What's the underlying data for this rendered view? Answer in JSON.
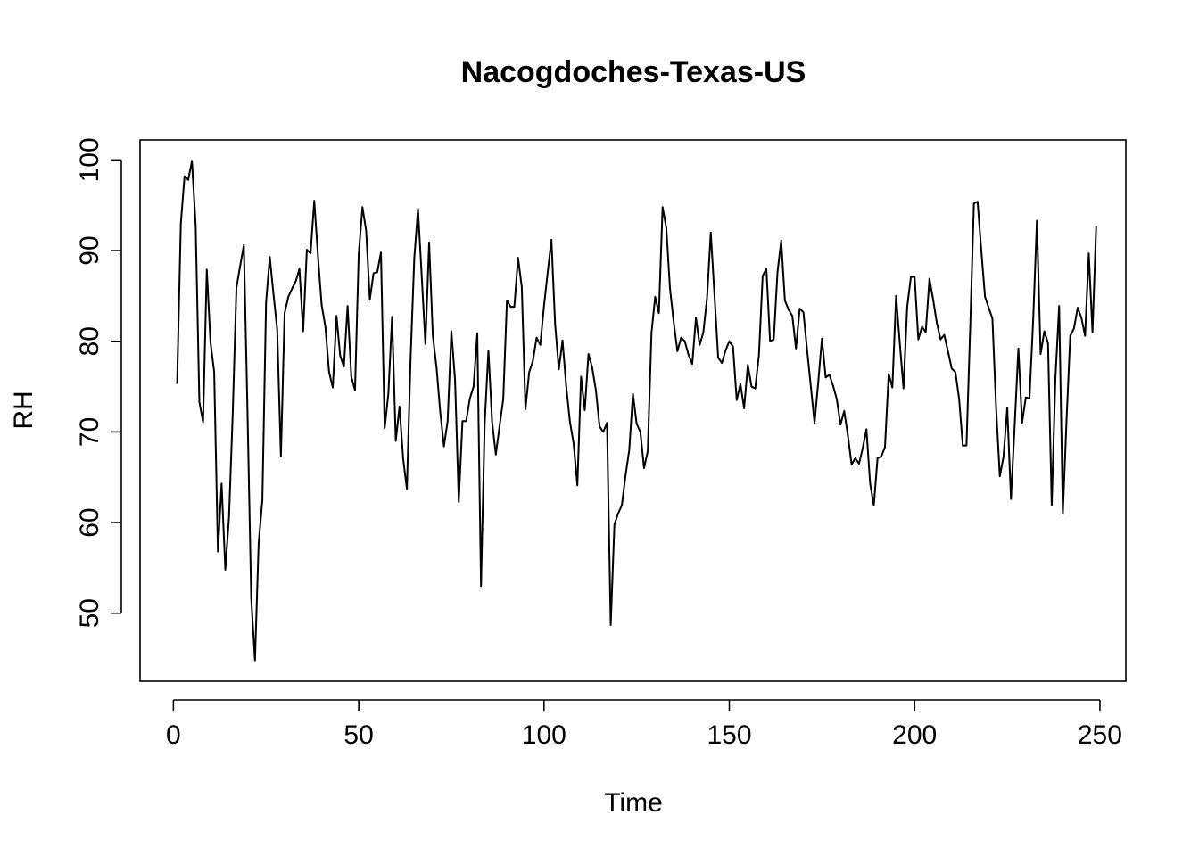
{
  "chart_data": {
    "type": "line",
    "title": "Nacogdoches-Texas-US",
    "xlabel": "Time",
    "ylabel": "RH",
    "xlim": [
      -9,
      257
    ],
    "ylim": [
      42.5,
      102.2
    ],
    "xticks": [
      0,
      50,
      100,
      150,
      200,
      250
    ],
    "yticks": [
      50,
      60,
      70,
      80,
      90,
      100
    ],
    "x_tick_labels": [
      "0",
      "50",
      "100",
      "150",
      "200",
      "250"
    ],
    "y_tick_labels": [
      "50",
      "60",
      "70",
      "80",
      "90",
      "100"
    ],
    "grid": false,
    "series": [
      {
        "color": "#000000",
        "x_start": 1,
        "values": [
          75.3,
          93.0,
          98.2,
          97.8,
          99.9,
          92.8,
          73.3,
          71.1,
          87.9,
          79.9,
          76.6,
          56.8,
          64.3,
          54.8,
          60.6,
          72.0,
          85.9,
          88.3,
          90.6,
          72.0,
          51.6,
          44.8,
          57.7,
          62.5,
          84.3,
          89.3,
          85.2,
          81.3,
          67.3,
          83.1,
          84.9,
          85.8,
          86.6,
          88.0,
          81.1,
          90.1,
          89.7,
          95.5,
          89.4,
          84.0,
          81.6,
          76.6,
          74.9,
          82.8,
          78.4,
          77.2,
          83.9,
          76.1,
          74.6,
          89.6,
          94.8,
          92.2,
          84.6,
          87.5,
          87.6,
          89.8,
          70.4,
          74.2,
          82.7,
          69.0,
          72.8,
          67.0,
          63.7,
          78.1,
          89.2,
          94.6,
          87.2,
          79.7,
          90.9,
          80.6,
          77.1,
          72.2,
          68.4,
          71.2,
          81.1,
          75.7,
          62.3,
          71.2,
          71.2,
          73.7,
          75.0,
          80.9,
          53.0,
          71.0,
          79.0,
          71.1,
          67.5,
          70.6,
          73.6,
          84.5,
          83.8,
          83.8,
          89.2,
          86.0,
          72.5,
          76.6,
          77.8,
          80.4,
          79.6,
          83.9,
          87.6,
          91.2,
          81.9,
          76.9,
          80.1,
          75.0,
          71.1,
          68.7,
          64.1,
          76.1,
          72.4,
          78.6,
          77.1,
          74.6,
          70.6,
          70.0,
          71.0,
          48.7,
          59.8,
          61.0,
          61.9,
          65.2,
          68.0,
          74.2,
          70.9,
          70.0,
          66.0,
          67.9,
          80.9,
          84.9,
          83.1,
          94.8,
          92.5,
          85.8,
          82.1,
          78.9,
          80.4,
          80.0,
          78.5,
          77.5,
          82.6,
          79.6,
          81.0,
          84.8,
          92.0,
          85.1,
          78.2,
          77.6,
          79.0,
          80.0,
          79.4,
          73.5,
          75.3,
          72.6,
          77.4,
          75.0,
          74.8,
          78.5,
          87.2,
          88.0,
          80.0,
          80.2,
          87.6,
          91.1,
          84.5,
          83.5,
          82.8,
          79.2,
          83.6,
          83.2,
          79.0,
          75.0,
          71.0,
          75.5,
          80.3,
          76.0,
          76.3,
          75.1,
          73.6,
          70.8,
          72.3,
          69.6,
          66.4,
          67.1,
          66.5,
          68.2,
          70.3,
          64.3,
          61.9,
          67.1,
          67.3,
          68.3,
          76.4,
          74.9,
          85.0,
          79.8,
          74.8,
          83.8,
          87.1,
          87.1,
          80.2,
          81.6,
          81.0,
          86.9,
          84.6,
          82.0,
          80.2,
          80.7,
          78.9,
          77.0,
          76.6,
          73.7,
          68.5,
          68.5,
          81.5,
          95.2,
          95.4,
          90.0,
          84.9,
          83.7,
          82.5,
          72.6,
          65.1,
          67.3,
          72.7,
          62.6,
          70.7,
          79.2,
          71.0,
          73.8,
          73.7,
          82.4,
          93.3,
          78.6,
          81.1,
          79.8,
          61.9,
          76.0,
          83.9,
          61.0,
          71.3,
          80.6,
          81.4,
          83.7,
          82.6,
          80.6,
          89.7,
          81.0,
          92.7
        ]
      }
    ]
  }
}
